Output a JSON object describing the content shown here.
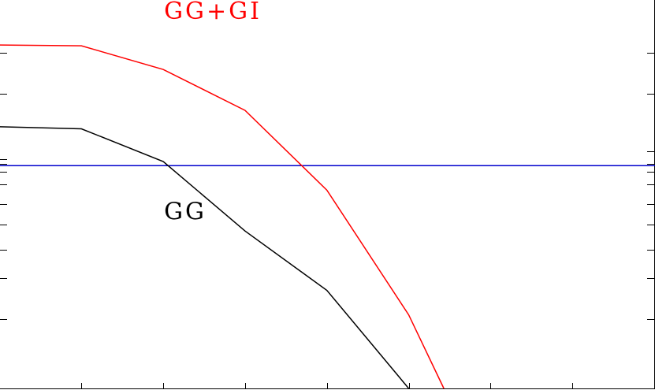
{
  "chart_data": {
    "type": "line",
    "title": "",
    "xlabel": "",
    "ylabel": "",
    "xlim": [
      0,
      8
    ],
    "ylim": [
      0,
      9.5
    ],
    "grid": false,
    "x_ticks": [
      1,
      2,
      3,
      4,
      5,
      6,
      7
    ],
    "y_ticks_left": [
      1.7,
      2.7,
      3.4,
      4.0,
      4.5,
      5.0,
      5.3,
      5.5,
      5.6,
      7.2,
      8.2
    ],
    "y_ticks_right": [
      1.7,
      2.7,
      3.4,
      4.0,
      4.5,
      5.0,
      5.3,
      5.5,
      5.8,
      7.2,
      8.2
    ],
    "series": [
      {
        "name": "GG+GI",
        "color": "#ff0000",
        "x": [
          0,
          1,
          2,
          3,
          4,
          5,
          5.43
        ],
        "y": [
          8.4,
          8.38,
          7.8,
          6.8,
          4.85,
          1.8,
          0
        ]
      },
      {
        "name": "GG",
        "color": "#000000",
        "x": [
          0,
          1,
          2,
          3,
          4,
          5
        ],
        "y": [
          6.4,
          6.35,
          5.55,
          3.85,
          2.4,
          0
        ]
      }
    ],
    "reference_lines": [
      {
        "orientation": "horizontal",
        "y": 5.45,
        "color": "#0000cc"
      }
    ]
  }
}
